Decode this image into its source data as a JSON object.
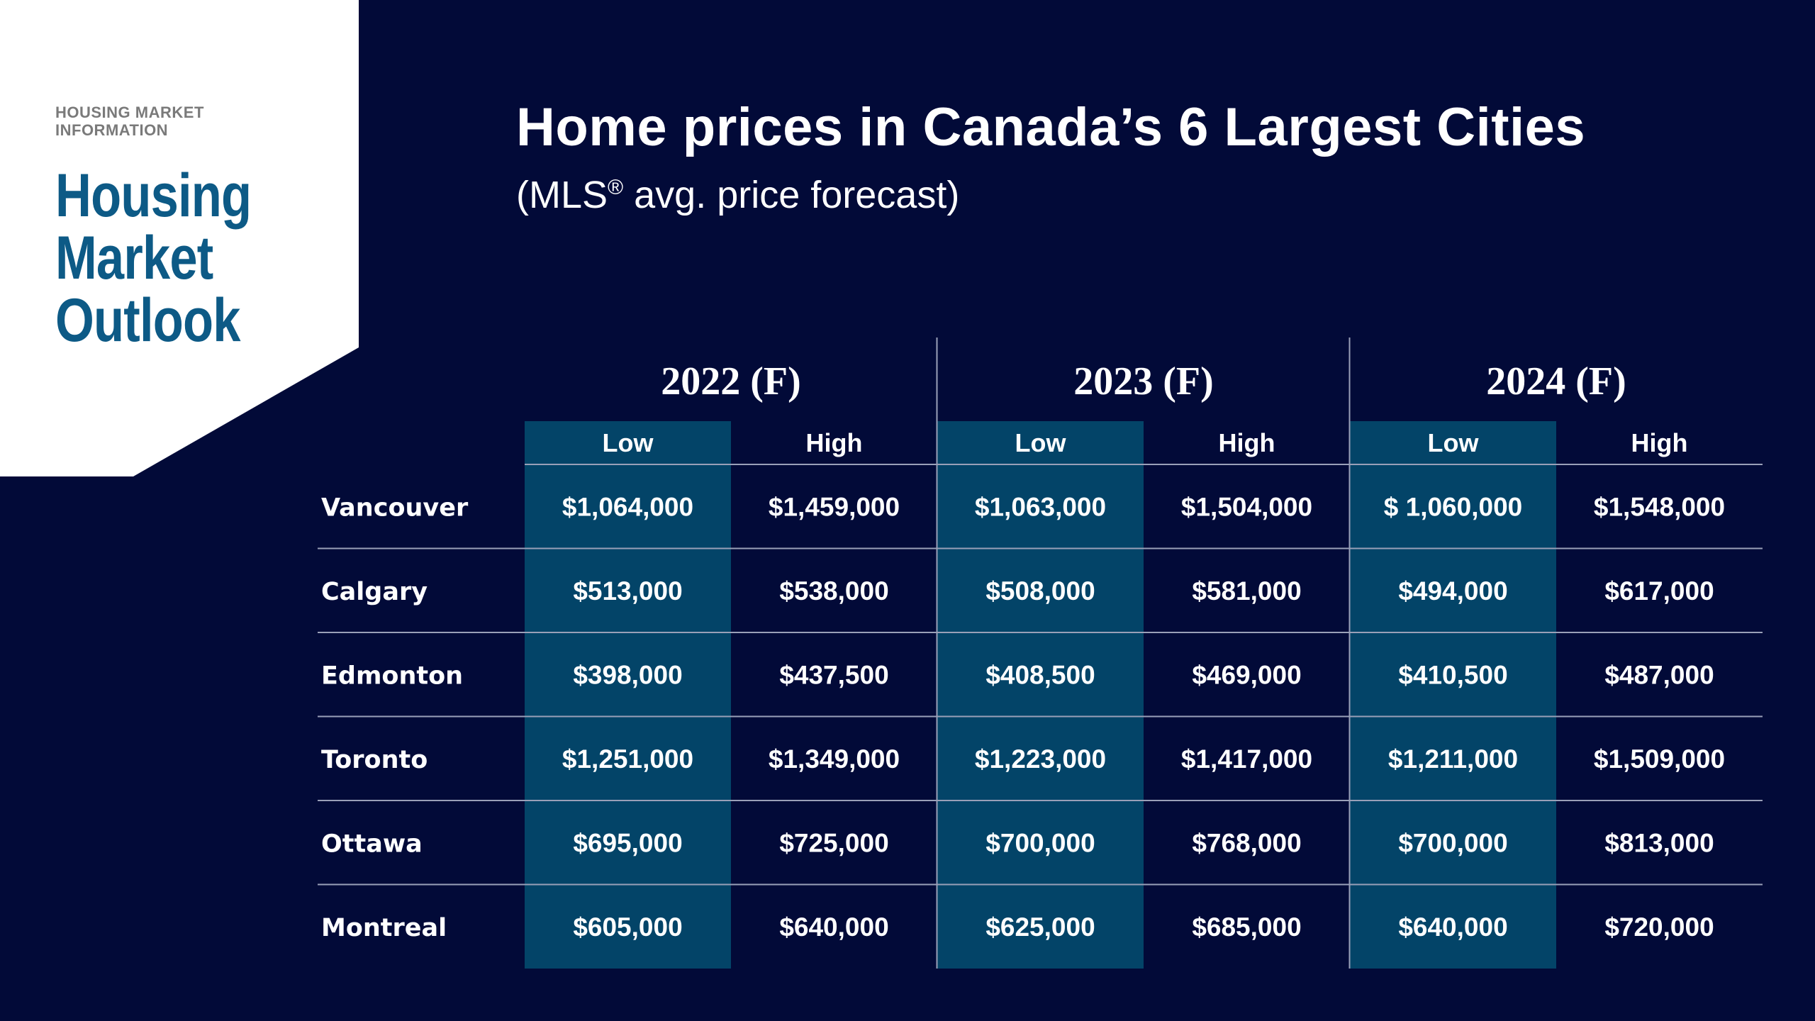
{
  "brand": {
    "kicker": "HOUSING MARKET\nINFORMATION",
    "title": "Housing\nMarket\nOutlook",
    "color": "#0d5a86"
  },
  "title_main": "Home prices in Canada’s 6 Largest Cities",
  "subtitle_pre": "(MLS",
  "subtitle_reg": "®",
  "subtitle_post": " avg. price forecast)",
  "colors": {
    "background": "#020a38",
    "low_column": "#034468",
    "divider": "#9aa0b8",
    "text": "#ffffff"
  },
  "chart_data": {
    "type": "table",
    "years": [
      "2022 (F)",
      "2023 (F)",
      "2024 (F)"
    ],
    "subheaders": [
      "Low",
      "High"
    ],
    "rows": [
      {
        "city": "Vancouver",
        "values": [
          "$1,064,000",
          "$1,459,000",
          "$1,063,000",
          "$1,504,000",
          "$ 1,060,000",
          "$1,548,000"
        ]
      },
      {
        "city": "Calgary",
        "values": [
          "$513,000",
          "$538,000",
          "$508,000",
          "$581,000",
          "$494,000",
          "$617,000"
        ]
      },
      {
        "city": "Edmonton",
        "values": [
          "$398,000",
          "$437,500",
          "$408,500",
          "$469,000",
          "$410,500",
          "$487,000"
        ]
      },
      {
        "city": "Toronto",
        "values": [
          "$1,251,000",
          "$1,349,000",
          "$1,223,000",
          "$1,417,000",
          "$1,211,000",
          "$1,509,000"
        ]
      },
      {
        "city": "Ottawa",
        "values": [
          "$695,000",
          "$725,000",
          "$700,000",
          "$768,000",
          "$700,000",
          "$813,000"
        ]
      },
      {
        "city": "Montreal",
        "values": [
          "$605,000",
          "$640,000",
          "$625,000",
          "$685,000",
          "$640,000",
          "$720,000"
        ]
      }
    ]
  }
}
